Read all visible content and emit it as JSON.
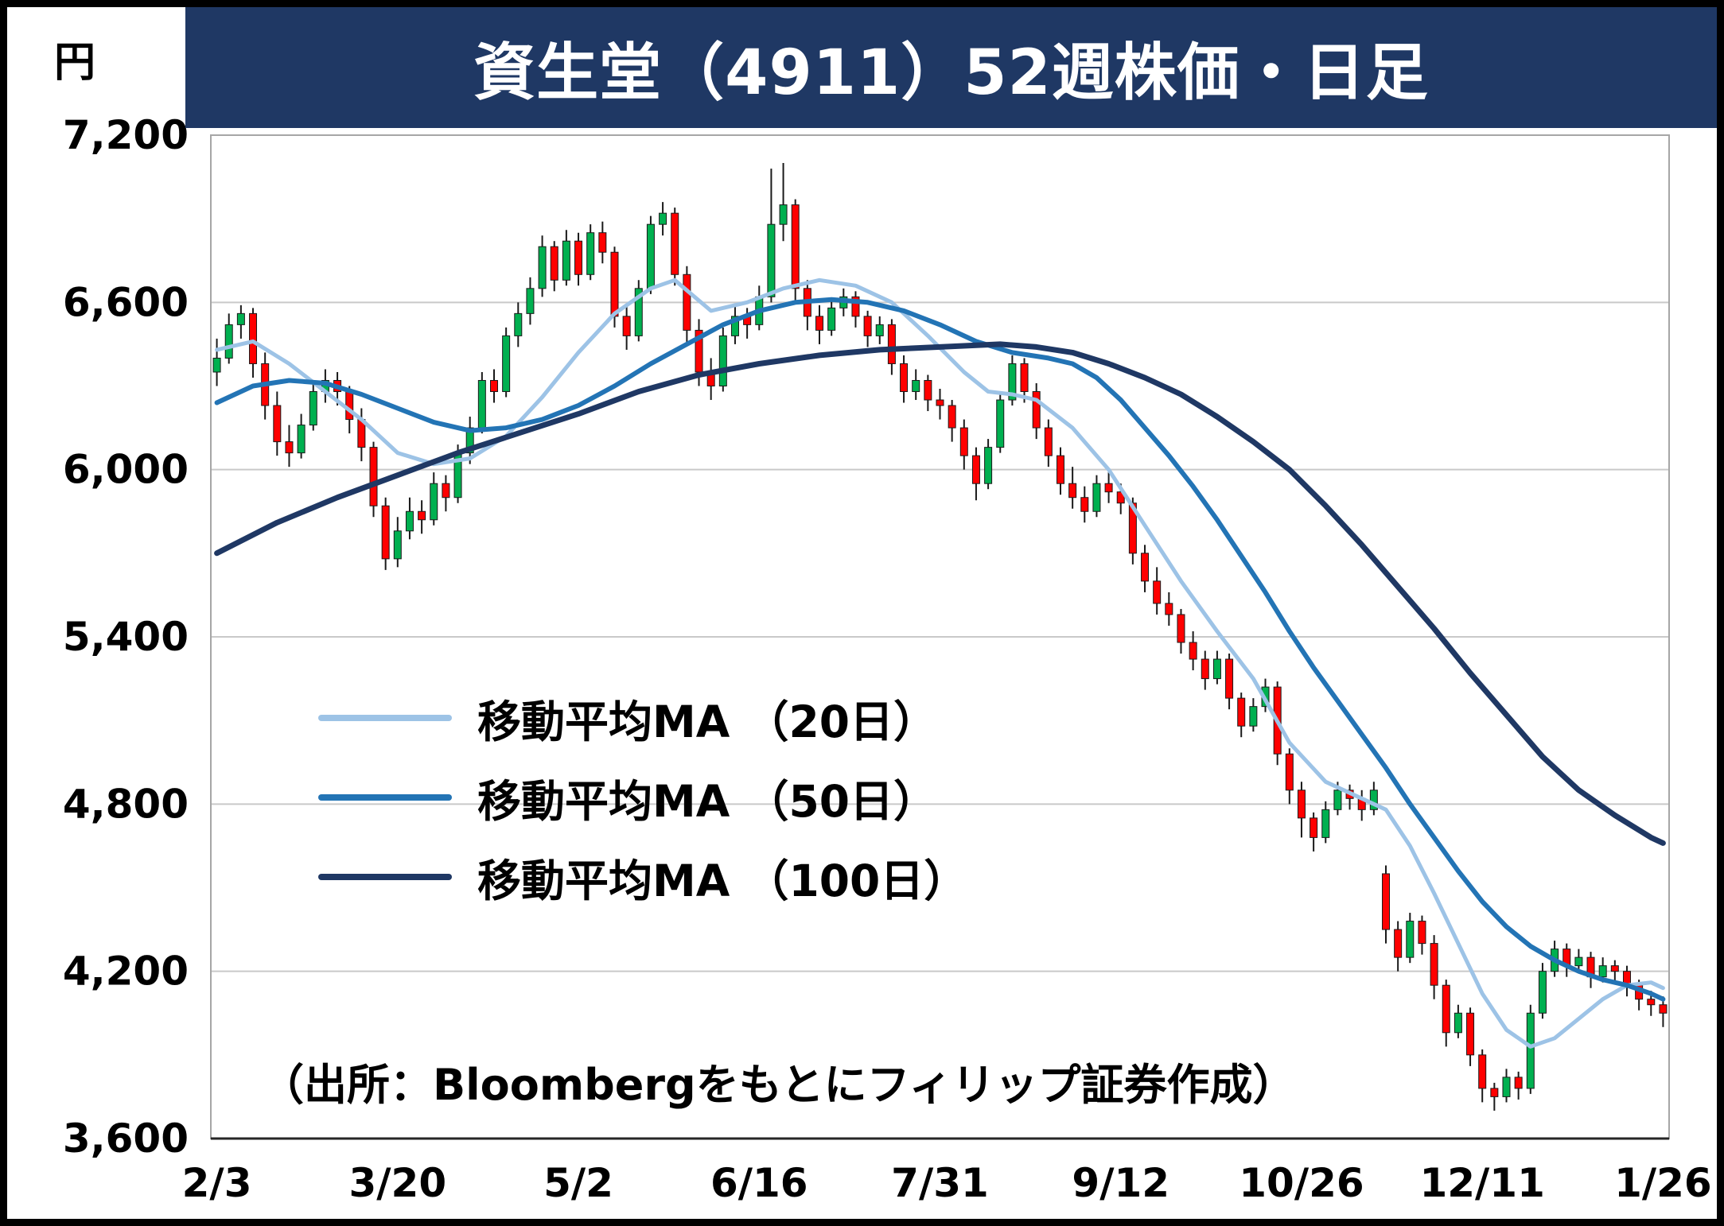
{
  "title": "資生堂（4911）52週株価・日足",
  "source_note": "（出所：Bloombergをもとにフィリップ証券作成）",
  "y_axis": {
    "unit": "円"
  },
  "legend": [
    {
      "label": "移動平均MA （20日）"
    },
    {
      "label": "移動平均MA （50日）"
    },
    {
      "label": "移動平均MA （100日）"
    }
  ],
  "colors": {
    "title_bar": "#1F3864",
    "candle_up": "#00B050",
    "candle_down": "#FF0000",
    "gridline": "#C9C9C9",
    "plot_border": "#A6A6A6",
    "axis_line": "#262626",
    "text": "#000000"
  },
  "chart_data": {
    "type": "candlestick",
    "title": "資生堂（4911）52週株価・日足",
    "ylabel": "円",
    "ylim": [
      3600,
      7200
    ],
    "grid": "horizontal",
    "y_ticks": [
      {
        "value": 7200,
        "label": "7,200"
      },
      {
        "value": 6600,
        "label": "6,600"
      },
      {
        "value": 6000,
        "label": "6,000"
      },
      {
        "value": 5400,
        "label": "5,400"
      },
      {
        "value": 4800,
        "label": "4,800"
      },
      {
        "value": 4200,
        "label": "4,200"
      },
      {
        "value": 3600,
        "label": "3,600"
      }
    ],
    "x_tick_labels": [
      "2/3",
      "3/20",
      "5/2",
      "6/16",
      "7/31",
      "9/12",
      "10/26",
      "12/11",
      "1/26"
    ],
    "x_tick_indices": [
      0,
      15,
      30,
      45,
      60,
      75,
      90,
      105,
      120
    ],
    "candles": [
      [
        6350,
        6470,
        6300,
        6400
      ],
      [
        6400,
        6560,
        6380,
        6520
      ],
      [
        6520,
        6590,
        6470,
        6560
      ],
      [
        6560,
        6580,
        6330,
        6380
      ],
      [
        6380,
        6420,
        6180,
        6230
      ],
      [
        6230,
        6280,
        6050,
        6100
      ],
      [
        6100,
        6160,
        6010,
        6060
      ],
      [
        6060,
        6200,
        6040,
        6160
      ],
      [
        6160,
        6320,
        6140,
        6280
      ],
      [
        6280,
        6360,
        6240,
        6320
      ],
      [
        6320,
        6350,
        6230,
        6280
      ],
      [
        6280,
        6300,
        6130,
        6180
      ],
      [
        6180,
        6220,
        6030,
        6080
      ],
      [
        6080,
        6100,
        5830,
        5870
      ],
      [
        5870,
        5900,
        5640,
        5680
      ],
      [
        5680,
        5830,
        5650,
        5780
      ],
      [
        5780,
        5900,
        5750,
        5850
      ],
      [
        5850,
        5890,
        5770,
        5820
      ],
      [
        5820,
        5990,
        5800,
        5950
      ],
      [
        5950,
        5980,
        5850,
        5900
      ],
      [
        5900,
        6090,
        5880,
        6060
      ],
      [
        6060,
        6190,
        6020,
        6150
      ],
      [
        6150,
        6350,
        6130,
        6320
      ],
      [
        6320,
        6360,
        6240,
        6280
      ],
      [
        6280,
        6510,
        6260,
        6480
      ],
      [
        6480,
        6600,
        6440,
        6560
      ],
      [
        6560,
        6690,
        6520,
        6650
      ],
      [
        6650,
        6840,
        6620,
        6800
      ],
      [
        6800,
        6820,
        6640,
        6680
      ],
      [
        6680,
        6860,
        6660,
        6820
      ],
      [
        6820,
        6850,
        6660,
        6700
      ],
      [
        6700,
        6880,
        6680,
        6850
      ],
      [
        6850,
        6890,
        6740,
        6780
      ],
      [
        6780,
        6800,
        6510,
        6550
      ],
      [
        6550,
        6590,
        6430,
        6480
      ],
      [
        6480,
        6680,
        6460,
        6650
      ],
      [
        6650,
        6910,
        6630,
        6880
      ],
      [
        6880,
        6960,
        6840,
        6920
      ],
      [
        6920,
        6940,
        6660,
        6700
      ],
      [
        6700,
        6730,
        6450,
        6500
      ],
      [
        6500,
        6540,
        6300,
        6350
      ],
      [
        6350,
        6400,
        6250,
        6300
      ],
      [
        6300,
        6510,
        6280,
        6480
      ],
      [
        6480,
        6590,
        6450,
        6550
      ],
      [
        6550,
        6580,
        6470,
        6520
      ],
      [
        6520,
        6660,
        6500,
        6620
      ],
      [
        6620,
        7080,
        6600,
        6880
      ],
      [
        6880,
        7100,
        6820,
        6950
      ],
      [
        6950,
        6970,
        6600,
        6650
      ],
      [
        6650,
        6680,
        6500,
        6550
      ],
      [
        6550,
        6590,
        6450,
        6500
      ],
      [
        6500,
        6610,
        6480,
        6580
      ],
      [
        6580,
        6650,
        6550,
        6620
      ],
      [
        6620,
        6640,
        6510,
        6550
      ],
      [
        6550,
        6570,
        6440,
        6480
      ],
      [
        6480,
        6550,
        6450,
        6520
      ],
      [
        6520,
        6540,
        6340,
        6380
      ],
      [
        6380,
        6410,
        6240,
        6280
      ],
      [
        6280,
        6360,
        6250,
        6320
      ],
      [
        6320,
        6340,
        6210,
        6250
      ],
      [
        6250,
        6290,
        6180,
        6230
      ],
      [
        6230,
        6250,
        6100,
        6150
      ],
      [
        6150,
        6180,
        6000,
        6050
      ],
      [
        6050,
        6080,
        5890,
        5950
      ],
      [
        5950,
        6110,
        5930,
        6080
      ],
      [
        6080,
        6280,
        6060,
        6250
      ],
      [
        6250,
        6410,
        6230,
        6380
      ],
      [
        6380,
        6400,
        6240,
        6280
      ],
      [
        6280,
        6310,
        6110,
        6150
      ],
      [
        6150,
        6180,
        6010,
        6050
      ],
      [
        6050,
        6080,
        5910,
        5950
      ],
      [
        5950,
        6010,
        5860,
        5900
      ],
      [
        5900,
        5940,
        5810,
        5850
      ],
      [
        5850,
        5980,
        5830,
        5950
      ],
      [
        5950,
        5990,
        5880,
        5920
      ],
      [
        5920,
        5950,
        5840,
        5880
      ],
      [
        5880,
        5900,
        5660,
        5700
      ],
      [
        5700,
        5730,
        5560,
        5600
      ],
      [
        5600,
        5650,
        5480,
        5520
      ],
      [
        5520,
        5560,
        5440,
        5480
      ],
      [
        5480,
        5500,
        5340,
        5380
      ],
      [
        5380,
        5420,
        5280,
        5320
      ],
      [
        5320,
        5350,
        5210,
        5250
      ],
      [
        5250,
        5350,
        5230,
        5320
      ],
      [
        5320,
        5340,
        5140,
        5180
      ],
      [
        5180,
        5200,
        5040,
        5080
      ],
      [
        5080,
        5180,
        5060,
        5150
      ],
      [
        5150,
        5250,
        5130,
        5220
      ],
      [
        5220,
        5240,
        4940,
        4980
      ],
      [
        4980,
        5000,
        4800,
        4850
      ],
      [
        4850,
        4880,
        4680,
        4750
      ],
      [
        4750,
        4770,
        4630,
        4680
      ],
      [
        4680,
        4810,
        4660,
        4780
      ],
      [
        4780,
        4880,
        4760,
        4850
      ],
      [
        4850,
        4870,
        4780,
        4820
      ],
      [
        4820,
        4850,
        4740,
        4780
      ],
      [
        4780,
        4880,
        4760,
        4850
      ],
      [
        4550,
        4580,
        4300,
        4350
      ],
      [
        4350,
        4380,
        4200,
        4250
      ],
      [
        4250,
        4410,
        4230,
        4380
      ],
      [
        4380,
        4400,
        4260,
        4300
      ],
      [
        4300,
        4330,
        4100,
        4150
      ],
      [
        4150,
        4170,
        3930,
        3980
      ],
      [
        3980,
        4080,
        3960,
        4050
      ],
      [
        4050,
        4070,
        3860,
        3900
      ],
      [
        3900,
        3920,
        3730,
        3780
      ],
      [
        3780,
        3800,
        3700,
        3750
      ],
      [
        3750,
        3850,
        3730,
        3820
      ],
      [
        3820,
        3840,
        3740,
        3780
      ],
      [
        3780,
        4080,
        3760,
        4050
      ],
      [
        4050,
        4230,
        4030,
        4200
      ],
      [
        4200,
        4310,
        4180,
        4280
      ],
      [
        4280,
        4300,
        4180,
        4220
      ],
      [
        4220,
        4280,
        4200,
        4250
      ],
      [
        4250,
        4270,
        4140,
        4180
      ],
      [
        4180,
        4250,
        4160,
        4220
      ],
      [
        4220,
        4240,
        4160,
        4200
      ],
      [
        4200,
        4220,
        4110,
        4150
      ],
      [
        4150,
        4170,
        4060,
        4100
      ],
      [
        4100,
        4130,
        4040,
        4080
      ],
      [
        4080,
        4110,
        4000,
        4050
      ]
    ],
    "moving_averages": [
      {
        "name": "移動平均MA （20日）",
        "key": "ma20",
        "color": "#9DC3E6",
        "points": [
          [
            0,
            6430
          ],
          [
            3,
            6460
          ],
          [
            6,
            6380
          ],
          [
            9,
            6280
          ],
          [
            12,
            6180
          ],
          [
            15,
            6060
          ],
          [
            18,
            6020
          ],
          [
            21,
            6040
          ],
          [
            24,
            6120
          ],
          [
            27,
            6260
          ],
          [
            30,
            6420
          ],
          [
            33,
            6560
          ],
          [
            36,
            6650
          ],
          [
            38,
            6680
          ],
          [
            41,
            6570
          ],
          [
            44,
            6600
          ],
          [
            47,
            6650
          ],
          [
            50,
            6680
          ],
          [
            53,
            6660
          ],
          [
            56,
            6600
          ],
          [
            59,
            6480
          ],
          [
            62,
            6350
          ],
          [
            64,
            6280
          ],
          [
            66,
            6270
          ],
          [
            68,
            6250
          ],
          [
            71,
            6150
          ],
          [
            74,
            6000
          ],
          [
            77,
            5800
          ],
          [
            80,
            5600
          ],
          [
            83,
            5420
          ],
          [
            86,
            5250
          ],
          [
            89,
            5020
          ],
          [
            92,
            4880
          ],
          [
            95,
            4820
          ],
          [
            97,
            4780
          ],
          [
            99,
            4650
          ],
          [
            101,
            4480
          ],
          [
            103,
            4300
          ],
          [
            105,
            4120
          ],
          [
            107,
            3990
          ],
          [
            109,
            3930
          ],
          [
            111,
            3960
          ],
          [
            113,
            4030
          ],
          [
            115,
            4100
          ],
          [
            117,
            4150
          ],
          [
            119,
            4160
          ],
          [
            120,
            4140
          ]
        ]
      },
      {
        "name": "移動平均MA （50日）",
        "key": "ma50",
        "color": "#2374B5",
        "points": [
          [
            0,
            6240
          ],
          [
            3,
            6300
          ],
          [
            6,
            6320
          ],
          [
            9,
            6310
          ],
          [
            12,
            6270
          ],
          [
            15,
            6220
          ],
          [
            18,
            6170
          ],
          [
            21,
            6140
          ],
          [
            24,
            6150
          ],
          [
            27,
            6180
          ],
          [
            30,
            6230
          ],
          [
            33,
            6300
          ],
          [
            36,
            6380
          ],
          [
            39,
            6450
          ],
          [
            42,
            6520
          ],
          [
            45,
            6570
          ],
          [
            48,
            6600
          ],
          [
            51,
            6610
          ],
          [
            54,
            6600
          ],
          [
            57,
            6570
          ],
          [
            60,
            6520
          ],
          [
            63,
            6460
          ],
          [
            66,
            6420
          ],
          [
            69,
            6400
          ],
          [
            71,
            6380
          ],
          [
            73,
            6330
          ],
          [
            75,
            6250
          ],
          [
            77,
            6150
          ],
          [
            79,
            6050
          ],
          [
            81,
            5940
          ],
          [
            83,
            5820
          ],
          [
            85,
            5690
          ],
          [
            87,
            5560
          ],
          [
            89,
            5420
          ],
          [
            91,
            5290
          ],
          [
            93,
            5170
          ],
          [
            95,
            5050
          ],
          [
            97,
            4930
          ],
          [
            99,
            4800
          ],
          [
            101,
            4680
          ],
          [
            103,
            4560
          ],
          [
            105,
            4450
          ],
          [
            107,
            4360
          ],
          [
            109,
            4290
          ],
          [
            111,
            4240
          ],
          [
            113,
            4200
          ],
          [
            115,
            4170
          ],
          [
            117,
            4150
          ],
          [
            119,
            4120
          ],
          [
            120,
            4100
          ]
        ]
      },
      {
        "name": "移動平均MA （100日）",
        "key": "ma100",
        "color": "#1F3864",
        "points": [
          [
            0,
            5700
          ],
          [
            5,
            5810
          ],
          [
            10,
            5900
          ],
          [
            15,
            5980
          ],
          [
            20,
            6060
          ],
          [
            25,
            6130
          ],
          [
            30,
            6200
          ],
          [
            35,
            6280
          ],
          [
            40,
            6340
          ],
          [
            45,
            6380
          ],
          [
            50,
            6410
          ],
          [
            55,
            6430
          ],
          [
            60,
            6440
          ],
          [
            65,
            6450
          ],
          [
            68,
            6440
          ],
          [
            71,
            6420
          ],
          [
            74,
            6380
          ],
          [
            77,
            6330
          ],
          [
            80,
            6270
          ],
          [
            83,
            6190
          ],
          [
            86,
            6100
          ],
          [
            89,
            6000
          ],
          [
            92,
            5870
          ],
          [
            95,
            5730
          ],
          [
            98,
            5580
          ],
          [
            101,
            5430
          ],
          [
            104,
            5270
          ],
          [
            107,
            5120
          ],
          [
            110,
            4970
          ],
          [
            113,
            4850
          ],
          [
            116,
            4760
          ],
          [
            119,
            4680
          ],
          [
            120,
            4660
          ]
        ]
      }
    ]
  }
}
